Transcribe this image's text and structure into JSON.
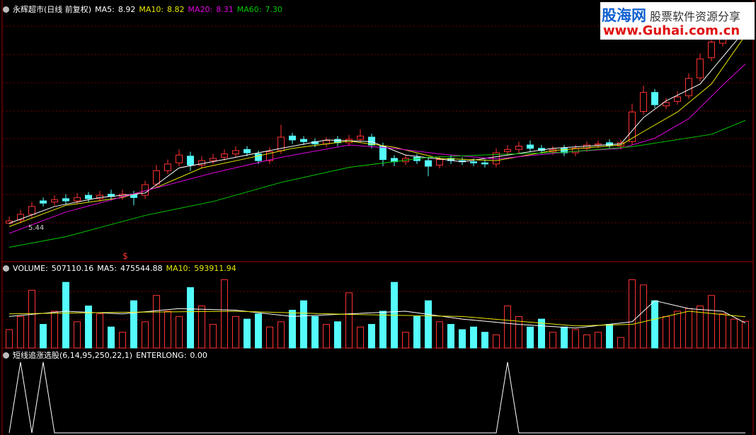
{
  "watermark": {
    "site": "股海网",
    "slogan": "股票软件资源分享",
    "url": "www.Guhai.com.cn"
  },
  "chart_data": [
    {
      "type": "candlestick",
      "title": "永辉超市(日线 前复权)",
      "open": [
        5.46,
        5.52,
        5.62,
        5.86,
        5.84,
        5.9,
        5.86,
        5.96,
        5.9,
        5.98,
        5.94,
        5.98,
        5.96,
        6.16,
        6.4,
        6.54,
        6.66,
        6.5,
        6.58,
        6.64,
        6.7,
        6.78,
        6.7,
        6.58,
        6.76,
        7.02,
        6.96,
        6.92,
        6.88,
        6.96,
        6.9,
        6.96,
        7.0,
        6.84,
        6.62,
        6.56,
        6.64,
        6.58,
        6.5,
        6.62,
        6.58,
        6.56,
        6.54,
        6.52,
        6.74,
        6.78,
        6.86,
        6.8,
        6.74,
        6.8,
        6.72,
        6.8,
        6.86,
        6.9,
        6.84,
        6.92,
        7.46,
        7.8,
        7.56,
        7.64,
        7.74,
        8.06,
        8.42,
        8.68,
        8.8,
        8.84
      ],
      "high": [
        5.58,
        5.7,
        5.84,
        5.92,
        5.96,
        5.98,
        6.0,
        6.02,
        6.04,
        6.06,
        6.06,
        6.04,
        6.22,
        6.5,
        6.6,
        6.78,
        6.74,
        6.66,
        6.7,
        6.78,
        6.84,
        6.84,
        6.76,
        6.82,
        7.22,
        7.08,
        7.02,
        6.98,
        7.0,
        7.02,
        7.04,
        7.14,
        7.06,
        6.9,
        6.68,
        6.68,
        6.7,
        6.64,
        6.66,
        6.68,
        6.64,
        6.62,
        6.6,
        6.8,
        6.86,
        6.92,
        6.94,
        6.86,
        6.84,
        6.86,
        6.86,
        6.92,
        6.94,
        6.96,
        6.96,
        7.6,
        7.92,
        7.86,
        7.7,
        7.82,
        8.14,
        8.5,
        8.8,
        8.88,
        8.92,
        8.98
      ],
      "low": [
        5.44,
        5.46,
        5.56,
        5.76,
        5.78,
        5.8,
        5.8,
        5.84,
        5.84,
        5.88,
        5.88,
        5.78,
        5.9,
        6.1,
        6.34,
        6.48,
        6.4,
        6.44,
        6.52,
        6.58,
        6.64,
        6.66,
        6.52,
        6.52,
        6.7,
        6.88,
        6.86,
        6.82,
        6.82,
        6.84,
        6.84,
        6.9,
        6.8,
        6.48,
        6.48,
        6.5,
        6.52,
        6.3,
        6.44,
        6.52,
        6.5,
        6.48,
        6.46,
        6.46,
        6.68,
        6.72,
        6.74,
        6.7,
        6.68,
        6.66,
        6.66,
        6.74,
        6.8,
        6.79,
        6.78,
        6.86,
        7.4,
        7.52,
        7.5,
        7.58,
        7.68,
        8.0,
        8.36,
        8.62,
        8.74,
        8.78
      ],
      "close": [
        5.5,
        5.62,
        5.76,
        5.82,
        5.88,
        5.86,
        5.92,
        5.9,
        5.96,
        5.94,
        5.98,
        5.92,
        6.15,
        6.4,
        6.52,
        6.68,
        6.5,
        6.58,
        6.62,
        6.7,
        6.76,
        6.72,
        6.58,
        6.74,
        7.0,
        6.95,
        6.92,
        6.88,
        6.94,
        6.9,
        6.96,
        7.02,
        6.86,
        6.6,
        6.56,
        6.62,
        6.58,
        6.48,
        6.6,
        6.58,
        6.56,
        6.54,
        6.52,
        6.72,
        6.78,
        6.84,
        6.8,
        6.76,
        6.78,
        6.72,
        6.8,
        6.86,
        6.88,
        6.85,
        6.9,
        7.45,
        7.8,
        7.58,
        7.62,
        7.72,
        8.05,
        8.4,
        8.7,
        8.78,
        8.82,
        8.88
      ],
      "ylim": [
        5.0,
        9.2
      ],
      "up_color": "#ff3232",
      "down_color": "#54fcfc",
      "low_label": 5.44,
      "marker_text": "$",
      "lines": [
        {
          "name": "MA5:",
          "value": 8.92,
          "color": "#ffffff",
          "x": [
            0,
            4,
            8,
            12,
            15,
            19,
            24,
            28,
            32,
            35,
            40,
            44,
            48,
            54,
            56,
            58,
            61,
            65
          ],
          "values": [
            5.46,
            5.76,
            5.92,
            6.0,
            6.45,
            6.6,
            6.8,
            6.95,
            6.92,
            6.68,
            6.56,
            6.68,
            6.8,
            6.88,
            7.35,
            7.65,
            7.95,
            8.92
          ]
        },
        {
          "name": "MA10:",
          "value": 8.82,
          "color": "#e8e800",
          "x": [
            0,
            5,
            10,
            13,
            17,
            21,
            25,
            30,
            34,
            38,
            43,
            48,
            54,
            56,
            59,
            62,
            65
          ],
          "values": [
            5.4,
            5.78,
            5.92,
            6.1,
            6.45,
            6.62,
            6.8,
            6.93,
            6.82,
            6.62,
            6.58,
            6.76,
            6.86,
            7.1,
            7.45,
            7.95,
            8.82
          ]
        },
        {
          "name": "MA20:",
          "value": 8.31,
          "color": "#e000e0",
          "x": [
            0,
            5,
            12,
            18,
            24,
            30,
            34,
            38,
            43,
            49,
            54,
            57,
            60,
            63,
            65
          ],
          "values": [
            5.28,
            5.66,
            6.04,
            6.36,
            6.64,
            6.86,
            6.8,
            6.7,
            6.61,
            6.73,
            6.8,
            6.98,
            7.33,
            7.93,
            8.31
          ]
        },
        {
          "name": "MA60:",
          "value": 7.3,
          "value_label": "7.30",
          "color": "#00c800",
          "x": [
            0,
            5,
            12,
            18,
            24,
            30,
            37,
            43,
            49,
            55,
            62,
            65
          ],
          "values": [
            5.03,
            5.22,
            5.6,
            5.85,
            6.19,
            6.46,
            6.64,
            6.69,
            6.73,
            6.83,
            7.05,
            7.3
          ]
        }
      ]
    },
    {
      "type": "bar",
      "title": "VOLUME:",
      "value": 507110.16,
      "values": [
        350000,
        600000,
        1100000,
        450000,
        700000,
        1250000,
        500000,
        800000,
        650000,
        400000,
        300000,
        900000,
        500000,
        1000000,
        700000,
        600000,
        1150000,
        800000,
        450000,
        1300000,
        600000,
        550000,
        650000,
        400000,
        500000,
        720000,
        900000,
        600000,
        450000,
        500000,
        1050000,
        400000,
        450000,
        700000,
        1250000,
        300000,
        600000,
        900000,
        500000,
        450000,
        350000,
        400000,
        300000,
        250000,
        800000,
        600000,
        400000,
        550000,
        300000,
        400000,
        350000,
        250000,
        300000,
        450000,
        200000,
        1300000,
        1200000,
        900000,
        600000,
        700000,
        750000,
        800000,
        1000000,
        650000,
        550000,
        507110.16
      ],
      "ylim": [
        0,
        1400000
      ],
      "lines": [
        {
          "name": "MA5:",
          "value": 475544.88,
          "color": "#ffffff",
          "x": [
            0,
            5,
            10,
            15,
            20,
            25,
            30,
            35,
            40,
            45,
            50,
            55,
            57,
            60,
            63,
            65
          ],
          "values": [
            600000,
            700000,
            650000,
            750000,
            720000,
            600000,
            650000,
            700000,
            550000,
            450000,
            380000,
            500000,
            900000,
            750000,
            700000,
            475544.88
          ]
        },
        {
          "name": "MA10:",
          "value": 593911.94,
          "color": "#e8e800",
          "x": [
            0,
            10,
            20,
            30,
            40,
            50,
            55,
            60,
            65
          ],
          "values": [
            650000,
            680000,
            700000,
            640000,
            600000,
            420000,
            450000,
            700000,
            593911.94
          ]
        }
      ]
    },
    {
      "type": "line",
      "title": "短线追涨选股(6,14,95,250,22,1)",
      "series_name": "ENTERLONG:",
      "value": 0,
      "value_label": "0.00",
      "color": "#ffffff",
      "ylim": [
        0,
        1
      ],
      "values": [
        0,
        1,
        0,
        1,
        0,
        0,
        0,
        0,
        0,
        0,
        0,
        0,
        0,
        0,
        0,
        0,
        0,
        0,
        0,
        0,
        0,
        0,
        0,
        0,
        0,
        0,
        0,
        0,
        0,
        0,
        0,
        0,
        0,
        0,
        0,
        0,
        0,
        0,
        0,
        0,
        0,
        0,
        0,
        0,
        1,
        0,
        0,
        0,
        0,
        0,
        0,
        0,
        0,
        0,
        0,
        0,
        0,
        0,
        0,
        0,
        0,
        0,
        0,
        0,
        0,
        0
      ]
    }
  ]
}
